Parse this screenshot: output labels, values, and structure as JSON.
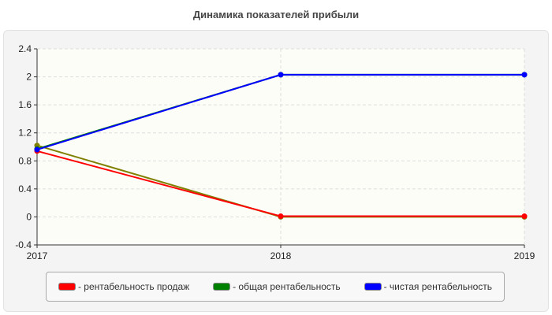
{
  "chart_data": {
    "type": "line",
    "title": "Динамика показателей прибыли",
    "categories": [
      "2017",
      "2018",
      "2019"
    ],
    "ylim": [
      -0.4,
      2.4
    ],
    "yticks": [
      "2.4",
      "2",
      "1.6",
      "1.2",
      "0.8",
      "0.4",
      "0",
      "-0.4"
    ],
    "grid": true,
    "legend_position": "bottom",
    "series": [
      {
        "name": "- рентабельность продаж",
        "color": "#ff0000",
        "values": [
          0.94,
          0.01,
          0.01
        ]
      },
      {
        "name": "- общая рентабельность",
        "color": "#008000",
        "values": [
          0.97,
          2.03,
          2.03
        ]
      },
      {
        "name": "- чистая рентабельность",
        "color": "#0000ff",
        "values": [
          0.96,
          2.03,
          2.03
        ]
      },
      {
        "color": "#808000",
        "values": [
          1.02,
          0.0,
          0.0
        ]
      }
    ]
  }
}
